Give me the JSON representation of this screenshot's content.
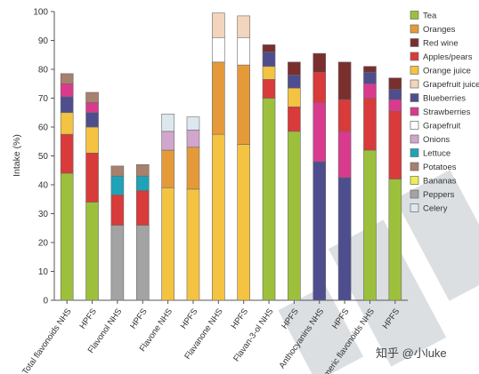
{
  "chart_data": {
    "type": "bar",
    "stacked": true,
    "title": "",
    "xlabel": "",
    "ylabel": "Intake (%)",
    "ylim": [
      0,
      100
    ],
    "yticks": [
      0,
      10,
      20,
      30,
      40,
      50,
      60,
      70,
      80,
      90,
      100
    ],
    "grid": false,
    "legend_position": "right",
    "categories": [
      "Total flavonoids NHS",
      "HPFS",
      "Flavonol NHS",
      "HPFS",
      "Flavone NHS",
      "HPFS",
      "Flavanone NHS",
      "HPFS",
      "Flavan-3-ol NHS",
      "HPFS",
      "Anthocyanins NHS",
      "HPFS",
      "Polymeric flavonoids NHS",
      "HPFS"
    ],
    "series": [
      {
        "name": "Tea",
        "color": "#9cc03c",
        "values": [
          44,
          34,
          0,
          0,
          0,
          0,
          0,
          0,
          70,
          58.5,
          0,
          0,
          52,
          42
        ]
      },
      {
        "name": "Oranges",
        "color": "#e59a3a",
        "values": [
          0,
          0,
          0,
          0,
          13,
          14.5,
          25,
          27.5,
          0,
          0,
          0,
          0,
          0,
          0
        ]
      },
      {
        "name": "Red wine",
        "color": "#7a2f2f",
        "values": [
          0,
          0,
          0,
          0,
          0,
          0,
          0,
          0,
          2.5,
          4.5,
          6.5,
          13,
          2,
          4
        ]
      },
      {
        "name": "Apples/pears",
        "color": "#d93a3a",
        "values": [
          13.5,
          17,
          10.5,
          12,
          0,
          0,
          0,
          0,
          6.5,
          8.5,
          10.5,
          11,
          18,
          23.5
        ]
      },
      {
        "name": "Orange juice",
        "color": "#f5c342",
        "values": [
          7.5,
          9,
          0,
          0,
          39,
          38.5,
          57.5,
          54,
          4.5,
          6.5,
          0,
          0,
          0,
          0
        ]
      },
      {
        "name": "Grapefruit juice",
        "color": "#f2d5bc",
        "values": [
          0,
          0,
          0,
          0,
          0,
          0,
          8.5,
          7.5,
          0,
          0,
          0,
          0,
          0,
          0
        ]
      },
      {
        "name": "Blueberries",
        "color": "#4e4e8e",
        "values": [
          5.5,
          5,
          0,
          0,
          0,
          0,
          0,
          0,
          5,
          4.5,
          48,
          42.5,
          4,
          3.5
        ]
      },
      {
        "name": "Strawberries",
        "color": "#d93a8e",
        "values": [
          4.5,
          3.5,
          0,
          0,
          0,
          0,
          0,
          0,
          0,
          0,
          20.5,
          16,
          5,
          4
        ]
      },
      {
        "name": "Grapefruit",
        "color": "#ffffff",
        "values": [
          0,
          0,
          0,
          0,
          0,
          0,
          8.5,
          9.5,
          0,
          0,
          0,
          0,
          0,
          0
        ]
      },
      {
        "name": "Onions",
        "color": "#d1a6cc",
        "values": [
          0,
          0,
          0,
          0,
          6.5,
          6,
          0,
          0,
          0,
          0,
          0,
          0,
          0,
          0
        ]
      },
      {
        "name": "Lettuce",
        "color": "#1fa3b8",
        "values": [
          0,
          0,
          6.5,
          5,
          0,
          0,
          0,
          0,
          0,
          0,
          0,
          0,
          0,
          0
        ]
      },
      {
        "name": "Potatoes",
        "color": "#a8806e",
        "values": [
          3.5,
          3.5,
          3.5,
          4,
          0,
          0,
          0,
          0,
          0,
          0,
          0,
          0,
          0,
          0
        ]
      },
      {
        "name": "Bananas",
        "color": "#eeee55",
        "values": [
          0,
          0,
          0,
          0,
          0,
          0,
          0,
          0,
          0,
          0,
          0,
          0,
          0,
          0
        ]
      },
      {
        "name": "Peppers",
        "color": "#a3a3a3",
        "values": [
          0,
          0,
          26,
          26,
          0,
          0,
          0,
          0,
          0,
          0,
          0,
          0,
          0,
          0
        ]
      },
      {
        "name": "Celery",
        "color": "#dde8ee",
        "values": [
          0,
          0,
          0,
          0,
          6,
          4.5,
          0,
          0,
          0,
          0,
          0,
          0,
          0,
          0
        ]
      }
    ],
    "stack_order": [
      [
        "Tea",
        "Apples/pears",
        "Orange juice",
        "Oranges",
        "Blueberries",
        "Strawberries",
        "Potatoes"
      ],
      [
        "Tea",
        "Apples/pears",
        "Orange juice",
        "Oranges",
        "Blueberries",
        "Strawberries",
        "Potatoes"
      ],
      [
        "Peppers",
        "Apples/pears",
        "Lettuce",
        "Potatoes"
      ],
      [
        "Peppers",
        "Apples/pears",
        "Lettuce",
        "Potatoes"
      ],
      [
        "Orange juice",
        "Oranges",
        "Onions",
        "Red wine",
        "Celery"
      ],
      [
        "Orange juice",
        "Oranges",
        "Onions",
        "Red wine",
        "Celery"
      ],
      [
        "Orange juice",
        "Oranges",
        "Grapefruit",
        "Grapefruit juice"
      ],
      [
        "Orange juice",
        "Oranges",
        "Grapefruit",
        "Grapefruit juice"
      ],
      [
        "Tea",
        "Apples/pears",
        "Orange juice",
        "Blueberries",
        "Red wine"
      ],
      [
        "Tea",
        "Apples/pears",
        "Orange juice",
        "Blueberries",
        "Red wine"
      ],
      [
        "Blueberries",
        "Strawberries",
        "Apples/pears",
        "Red wine"
      ],
      [
        "Blueberries",
        "Strawberries",
        "Apples/pears",
        "Red wine"
      ],
      [
        "Tea",
        "Apples/pears",
        "Strawberries",
        "Blueberries",
        "Red wine"
      ],
      [
        "Tea",
        "Apples/pears",
        "Strawberries",
        "Blueberries",
        "Red wine"
      ]
    ]
  },
  "watermark": "知乎 @小luke"
}
